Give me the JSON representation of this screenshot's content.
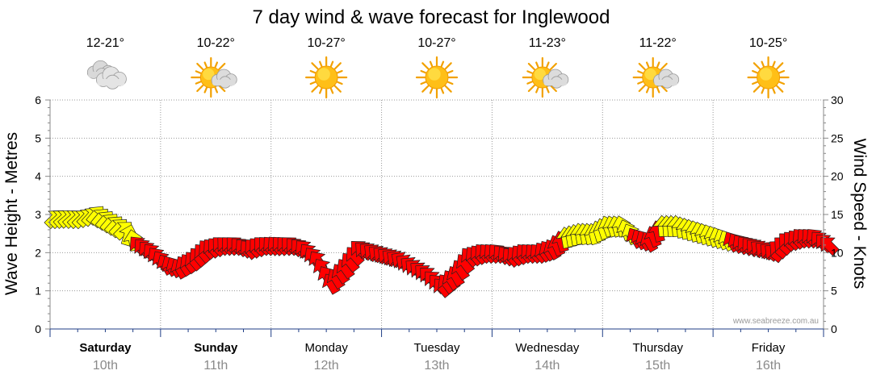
{
  "chart_data": {
    "type": "line",
    "title": "7 day wind & wave forecast for Inglewood",
    "ylabel_left": "Wave Height - Metres",
    "ylabel_right": "Wind Speed - Knots",
    "yticks_left": [
      "0",
      "1",
      "2",
      "3",
      "4",
      "5",
      "6"
    ],
    "yticks_right": [
      "0",
      "5",
      "10",
      "15",
      "20",
      "25",
      "30"
    ],
    "ylim_left": [
      0,
      6
    ],
    "ylim_right": [
      0,
      30
    ],
    "grid": true,
    "days": [
      {
        "name": "Saturday",
        "date": "10th",
        "temp": "12-21°",
        "icon": "cloudy-icon",
        "bold": true
      },
      {
        "name": "Sunday",
        "date": "11th",
        "temp": "10-22°",
        "icon": "sun-cloud-icon",
        "bold": true
      },
      {
        "name": "Monday",
        "date": "12th",
        "temp": "10-27°",
        "icon": "sun-icon",
        "bold": false
      },
      {
        "name": "Tuesday",
        "date": "13th",
        "temp": "10-27°",
        "icon": "sun-icon",
        "bold": false
      },
      {
        "name": "Wednesday",
        "date": "14th",
        "temp": "11-23°",
        "icon": "sun-cloud-icon",
        "bold": false
      },
      {
        "name": "Thursday",
        "date": "15th",
        "temp": "11-22°",
        "icon": "sun-cloud-icon",
        "bold": false
      },
      {
        "name": "Friday",
        "date": "16th",
        "temp": "10-25°",
        "icon": "sun-icon",
        "bold": false
      }
    ],
    "wind_series": {
      "name": "Wind Speed",
      "unit": "knots",
      "time_hours": [
        0,
        3,
        6,
        9,
        12,
        15,
        18,
        21,
        24,
        27,
        30,
        33,
        36,
        39,
        42,
        45,
        48,
        51,
        54,
        57,
        60,
        63,
        66,
        69,
        72,
        75,
        78,
        81,
        84,
        87,
        90,
        93,
        96,
        99,
        102,
        105,
        108,
        111,
        114,
        117,
        120,
        123,
        126,
        129,
        132,
        135,
        138,
        141,
        144,
        147,
        150,
        153,
        156,
        159,
        162,
        165,
        168
      ],
      "speed_knots": [
        14.5,
        14.5,
        14.5,
        15,
        14,
        13,
        11,
        10,
        8.5,
        8,
        9,
        10.5,
        11,
        11,
        10.5,
        11,
        11,
        11,
        10.5,
        9,
        6,
        8,
        10.5,
        10,
        9.5,
        9,
        8,
        7,
        5.5,
        7,
        9.5,
        10,
        10,
        9.5,
        10,
        10,
        10.5,
        12,
        12.5,
        12.5,
        13.5,
        13.5,
        12,
        11.5,
        13.5,
        13.5,
        13,
        12.5,
        12,
        11.5,
        11,
        10.5,
        10,
        11.5,
        12,
        12,
        11
      ],
      "direction_deg": [
        45,
        50,
        45,
        40,
        40,
        45,
        320,
        320,
        330,
        330,
        320,
        320,
        315,
        315,
        320,
        315,
        320,
        315,
        320,
        325,
        330,
        325,
        315,
        310,
        310,
        305,
        310,
        315,
        320,
        330,
        320,
        320,
        320,
        320,
        320,
        320,
        330,
        350,
        350,
        345,
        340,
        345,
        330,
        330,
        355,
        355,
        350,
        345,
        340,
        330,
        320,
        310,
        310,
        315,
        320,
        320,
        315
      ],
      "color": [
        "#ffff00",
        "#ffff00",
        "#ffff00",
        "#ffff00",
        "#ffff00",
        "#ffff00",
        "#ff0000",
        "#ff0000",
        "#ff0000",
        "#ff0000",
        "#ff0000",
        "#ff0000",
        "#ff0000",
        "#ff0000",
        "#ff0000",
        "#ff0000",
        "#ff0000",
        "#ff0000",
        "#ff0000",
        "#ff0000",
        "#ff0000",
        "#ff0000",
        "#ff0000",
        "#ff0000",
        "#ff0000",
        "#ff0000",
        "#ff0000",
        "#ff0000",
        "#ff0000",
        "#ff0000",
        "#ff0000",
        "#ff0000",
        "#ff0000",
        "#ff0000",
        "#ff0000",
        "#ff0000",
        "#ff0000",
        "#ffff00",
        "#ffff00",
        "#ffff00",
        "#ffff00",
        "#ffff00",
        "#ff0000",
        "#ff0000",
        "#ffff00",
        "#ffff00",
        "#ffff00",
        "#ffff00",
        "#ffff00",
        "#ff0000",
        "#ff0000",
        "#ff0000",
        "#ff0000",
        "#ff0000",
        "#ff0000",
        "#ff0000",
        "#ff0000"
      ]
    }
  },
  "watermark": "www.seabreeze.com.au"
}
